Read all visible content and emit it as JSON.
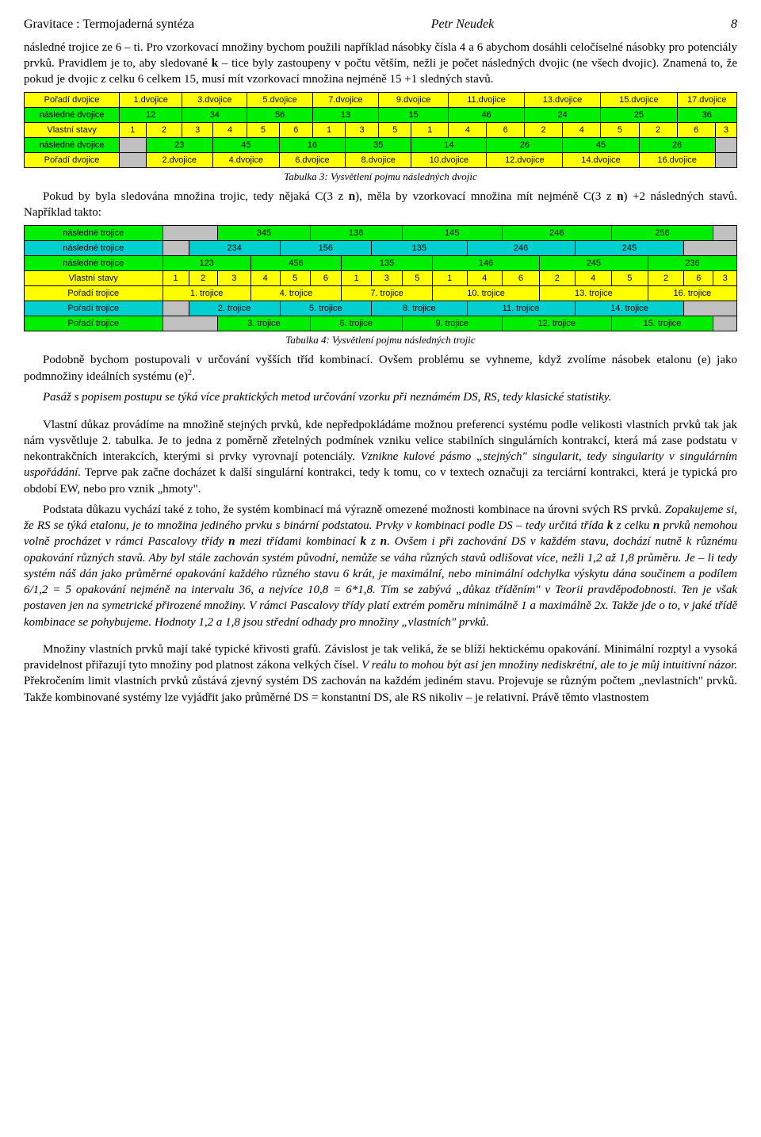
{
  "header": {
    "title": "Gravitace : Termojaderná syntéza",
    "author": "Petr Neudek",
    "page": "8"
  },
  "para1": "následné trojice ze 6 – ti. Pro vzorkovací množiny bychom použili například násobky čísla 4 a 6 abychom dosáhli celočíselné násobky pro potenciály prvků. Pravidlem je to, aby sledované ",
  "para1_bold": "k",
  "para1_cont": " – tice byly zastoupeny v počtu větším, nežli je počet následných dvojic (ne všech dvojic). Znamená to, že pokud je dvojic z celku 6 celkem 15, musí mít vzorkovací množina nejméně 15 +1 sledných stavů.",
  "table3": {
    "rows": [
      {
        "class": "bg-y",
        "cells": [
          "Pořadí dvojice",
          "1.dvojice",
          "3.dvojice",
          "5.dvojice",
          "7.dvojice",
          "9.dvojice",
          "11.dvojice",
          "13.dvojice",
          "15.dvojice",
          "17.dvojice"
        ],
        "span": [
          1,
          2,
          2,
          2,
          2,
          2,
          2,
          2,
          2,
          2
        ]
      },
      {
        "class": "bg-g",
        "cells": [
          "následné dvojice",
          "12",
          "34",
          "56",
          "13",
          "15",
          "46",
          "24",
          "25",
          "36"
        ],
        "span": [
          1,
          2,
          2,
          2,
          2,
          2,
          2,
          2,
          2,
          2
        ]
      },
      {
        "class": "bg-y",
        "cells": [
          "Vlastní stavy",
          "1",
          "2",
          "3",
          "4",
          "5",
          "6",
          "1",
          "3",
          "5",
          "1",
          "4",
          "6",
          "2",
          "4",
          "5",
          "2",
          "6",
          "3"
        ],
        "span": [
          1,
          1,
          1,
          1,
          1,
          1,
          1,
          1,
          1,
          1,
          1,
          1,
          1,
          1,
          1,
          1,
          1,
          1,
          1
        ]
      },
      {
        "class": "bg-g",
        "cells": [
          "následné dvojice",
          "",
          "23",
          "45",
          "16",
          "35",
          "14",
          "26",
          "45",
          "26",
          ""
        ],
        "span": [
          1,
          1,
          2,
          2,
          2,
          2,
          2,
          2,
          2,
          2,
          1
        ],
        "cellClass": [
          "bg-g",
          "bg-gr",
          "bg-g",
          "bg-g",
          "bg-g",
          "bg-g",
          "bg-g",
          "bg-g",
          "bg-g",
          "bg-g",
          "bg-gr"
        ]
      },
      {
        "class": "bg-y",
        "cells": [
          "Pořadí dvojice",
          "",
          "2.dvojice",
          "4.dvojice",
          "6.dvojice",
          "8.dvojice",
          "10.dvojice",
          "12.dvojice",
          "14.dvojice",
          "16.dvojice",
          ""
        ],
        "span": [
          1,
          1,
          2,
          2,
          2,
          2,
          2,
          2,
          2,
          2,
          1
        ],
        "cellClass": [
          "bg-y",
          "bg-gr",
          "bg-y",
          "bg-y",
          "bg-y",
          "bg-y",
          "bg-y",
          "bg-y",
          "bg-y",
          "bg-y",
          "bg-gr"
        ]
      }
    ]
  },
  "caption3": "Tabulka 3: Vysvětlení pojmu následných dvojic",
  "para2_a": "Pokud by byla sledována množina trojic, tedy nějaká C(3 z ",
  "para2_b": "n",
  "para2_c": "), měla by vzorkovací množina mít nejméně C(3 z ",
  "para2_d": "n",
  "para2_e": ") +2 následných stavů. Například takto:",
  "table4": {
    "rows": [
      {
        "class": "bg-g",
        "cells": [
          "následné trojice",
          "",
          "345",
          "136",
          "145",
          "246",
          "256",
          ""
        ],
        "span": [
          1,
          2,
          3,
          3,
          3,
          3,
          3,
          1
        ],
        "cellClass": [
          "bg-g",
          "bg-gr",
          "bg-g",
          "bg-g",
          "bg-g",
          "bg-g",
          "bg-g",
          "bg-gr"
        ]
      },
      {
        "class": "bg-c",
        "cells": [
          "následné trojice",
          "",
          "234",
          "156",
          "135",
          "246",
          "245",
          ""
        ],
        "span": [
          1,
          1,
          3,
          3,
          3,
          3,
          3,
          2
        ],
        "cellClass": [
          "bg-c",
          "bg-gr",
          "bg-c",
          "bg-c",
          "bg-c",
          "bg-c",
          "bg-c",
          "bg-gr"
        ]
      },
      {
        "class": "bg-g",
        "cells": [
          "následné trojice",
          "123",
          "456",
          "135",
          "146",
          "245",
          "236"
        ],
        "span": [
          1,
          3,
          3,
          3,
          3,
          3,
          3
        ]
      },
      {
        "class": "bg-y",
        "cells": [
          "Vlastní stavy",
          "1",
          "2",
          "3",
          "4",
          "5",
          "6",
          "1",
          "3",
          "5",
          "1",
          "4",
          "6",
          "2",
          "4",
          "5",
          "2",
          "6",
          "3"
        ],
        "span": [
          1,
          1,
          1,
          1,
          1,
          1,
          1,
          1,
          1,
          1,
          1,
          1,
          1,
          1,
          1,
          1,
          1,
          1,
          1
        ]
      },
      {
        "class": "bg-y",
        "cells": [
          "Pořadí trojice",
          "1. trojice",
          "4. trojice",
          "7. trojice",
          "10. trojice",
          "13. trojice",
          "16. trojice"
        ],
        "span": [
          1,
          3,
          3,
          3,
          3,
          3,
          3
        ]
      },
      {
        "class": "bg-c",
        "cells": [
          "Pořadí trojice",
          "",
          "2. trojice",
          "5. trojice",
          "8. trojice",
          "11. trojice",
          "14. trojice",
          ""
        ],
        "span": [
          1,
          1,
          3,
          3,
          3,
          3,
          3,
          2
        ],
        "cellClass": [
          "bg-c",
          "bg-gr",
          "bg-c",
          "bg-c",
          "bg-c",
          "bg-c",
          "bg-c",
          "bg-gr"
        ]
      },
      {
        "class": "bg-g",
        "cells": [
          "Pořadí trojice",
          "",
          "3. trojice",
          "6. trojice",
          "9. trojice",
          "12. trojice",
          "15. trojice",
          ""
        ],
        "span": [
          1,
          2,
          3,
          3,
          3,
          3,
          3,
          1
        ],
        "cellClass": [
          "bg-g",
          "bg-gr",
          "bg-g",
          "bg-g",
          "bg-g",
          "bg-g",
          "bg-g",
          "bg-gr"
        ]
      }
    ]
  },
  "caption4": "Tabulka 4: Vysvětlení pojmu následných trojic",
  "para3_a": "Podobně bychom postupovali v určování vyšších tříd kombinací. Ovšem problému se vyhneme, když zvolíme násobek etalonu (e) jako podmnožiny ideálních systému (e)",
  "para3_sup": "2",
  "para3_b": ".",
  "para4": "Pasáž s popisem postupu se týká více praktických metod určování vzorku při neznámém DS, RS, tedy klasické statistiky.",
  "para5_a": "Vlastní důkaz provádíme na množině stejných prvků, kde nepředpokládáme možnou preferenci systému podle velikosti vlastních prvků tak jak nám vysvětluje 2. tabulka. Je to jedna z poměrně zřetelných podmínek vzniku velice stabilních singulárních kontrakcí, která má zase podstatu v nekontrakčních interakcích, kterými si prvky vyrovnají potenciály. ",
  "para5_b": "Vznikne kulové pásmo „stejných\" singularit, tedy singularity v singulárním uspořádání.",
  "para5_c": " Teprve pak začne docházet k další singulární kontrakci, tedy k tomu, co v textech označuji za terciární kontrakci, která je typická pro období EW, nebo pro vznik „hmoty\".",
  "para6_a": "Podstata důkazu vychází také z toho, že systém kombinací má výrazně omezené možnosti kombinace na úrovni svých RS prvků. ",
  "para6_b": "Zopakujeme si, že RS se týká etalonu, je to množina jediného prvku s binární podstatou. Prvky v kombinaci podle DS – tedy určitá třída ",
  "para6_b2": "k",
  "para6_b3": " z celku ",
  "para6_b4": "n",
  "para6_b5": " prvků nemohou volně procházet v rámci Pascalovy třídy ",
  "para6_b6": "n",
  "para6_b7": " mezi třídami kombinací ",
  "para6_b8": "k",
  "para6_b9": " z ",
  "para6_b10": "n",
  "para6_b11": ". Ovšem i při zachování DS v každém stavu, dochází nutně k různému opakování různých stavů. Aby byl stále zachován systém původní, nemůže se váha různých stavů odlišovat více, nežli 1,2 až 1,8 průměru. Je – li tedy systém náš dán jako průměrné opakování každého různého stavu 6 krát, je maximální, nebo minimální odchylka výskytu dána součinem a podílem 6/1,2 = 5 opakování nejméně na intervalu 36, a nejvíce 10,8 = 6*1,8. Tím se zabývá „důkaz tříděním\" v Teorii pravděpodobnosti. Ten je však postaven jen na symetrické přirozené množiny. V rámci Pascalovy třídy platí extrém poměru minimálně 1 a maximálně 2x. Takže jde o to, v jaké třídě kombinace se pohybujeme. Hodnoty 1,2 a 1,8 jsou střední odhady pro množiny „vlastních\" prvků.",
  "para7_a": "Množiny vlastních prvků mají také typické křivosti grafů. Závislost je tak veliká, že se blíží hektickému opakování. Minimální rozptyl a vysoká pravidelnost přiřazují tyto množiny pod platnost zákona velkých čísel. ",
  "para7_b": "V reálu to mohou být asi jen množiny nediskrétní, ale to je můj intuitivní názor.",
  "para7_c": " Překročením limit vlastních prvků zůstává zjevný systém DS zachován na každém jediném stavu. Projevuje se různým počtem „nevlastních\" prvků. Takže kombinované systémy lze vyjádřit jako průměrné DS = konstantní DS, ale RS nikoliv – je relativní. Právě těmto vlastnostem"
}
